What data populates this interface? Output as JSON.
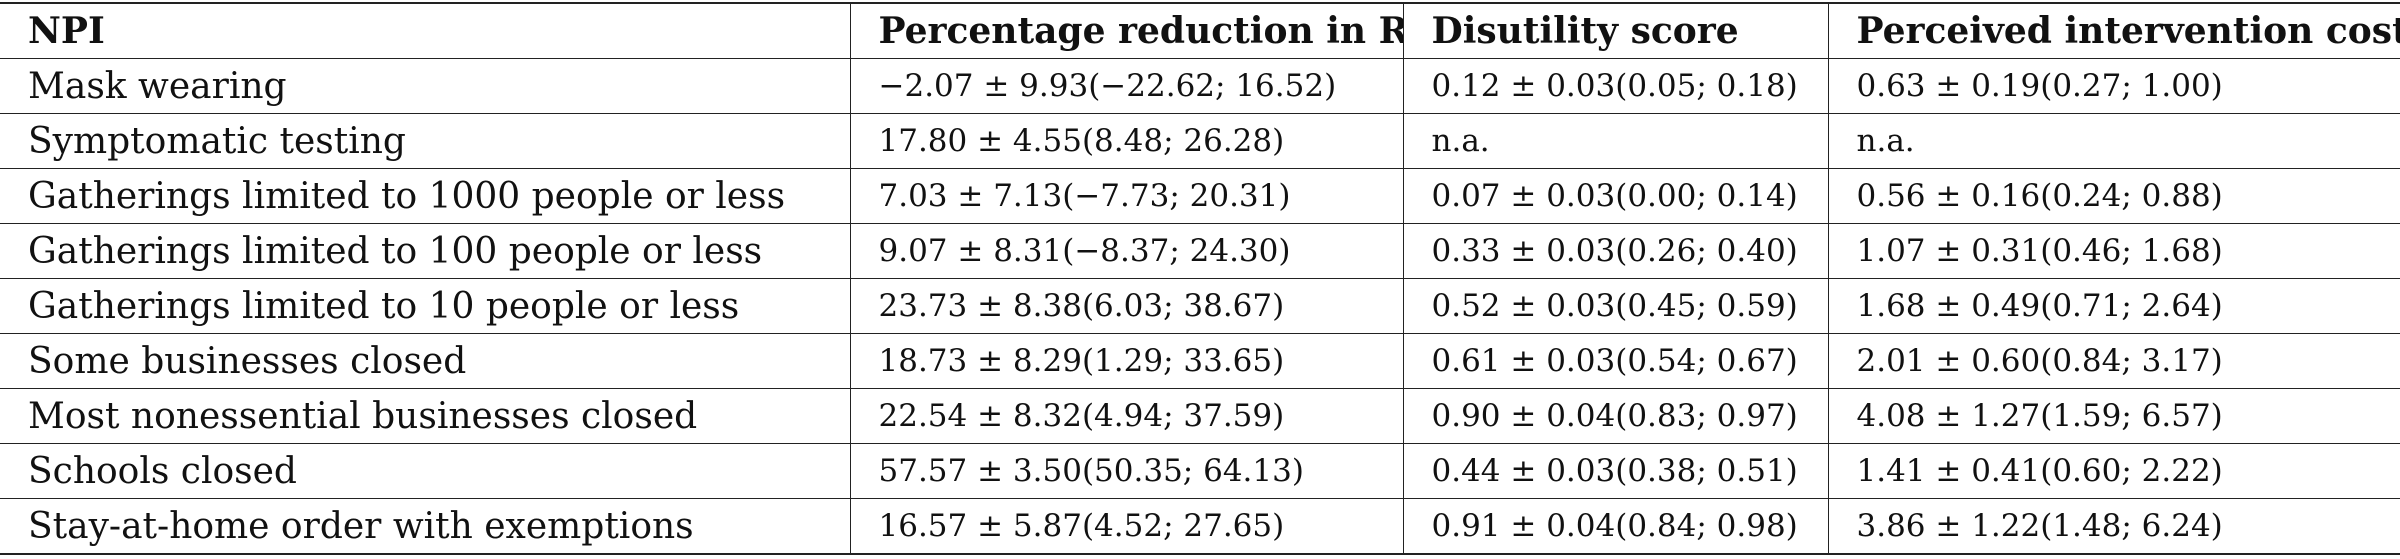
{
  "table": {
    "headers": [
      "NPI",
      "Percentage reduction in R",
      "Disutility score",
      "Perceived intervention cost"
    ],
    "rows": [
      [
        "Mask wearing",
        "−2.07 ± 9.93(−22.62; 16.52)",
        "0.12 ± 0.03(0.05; 0.18)",
        "0.63 ± 0.19(0.27; 1.00)"
      ],
      [
        "Symptomatic testing",
        "17.80 ± 4.55(8.48; 26.28)",
        "n.a.",
        "n.a."
      ],
      [
        "Gatherings limited to 1000 people or less",
        "7.03 ± 7.13(−7.73; 20.31)",
        "0.07 ± 0.03(0.00; 0.14)",
        "0.56 ± 0.16(0.24; 0.88)"
      ],
      [
        "Gatherings limited to 100 people or less",
        "9.07 ± 8.31(−8.37; 24.30)",
        "0.33 ± 0.03(0.26; 0.40)",
        "1.07 ± 0.31(0.46; 1.68)"
      ],
      [
        "Gatherings limited to 10 people or less",
        "23.73 ± 8.38(6.03; 38.67)",
        "0.52 ± 0.03(0.45; 0.59)",
        "1.68 ± 0.49(0.71; 2.64)"
      ],
      [
        "Some businesses closed",
        "18.73 ± 8.29(1.29; 33.65)",
        "0.61 ± 0.03(0.54; 0.67)",
        "2.01 ± 0.60(0.84; 3.17)"
      ],
      [
        "Most nonessential businesses closed",
        "22.54 ± 8.32(4.94; 37.59)",
        "0.90 ± 0.04(0.83; 0.97)",
        "4.08 ± 1.27(1.59; 6.57)"
      ],
      [
        "Schools closed",
        "57.57 ± 3.50(50.35; 64.13)",
        "0.44 ± 0.03(0.38; 0.51)",
        "1.41 ± 0.41(0.60; 2.22)"
      ],
      [
        "Stay-at-home order with exemptions",
        "16.57 ± 5.87(4.52; 27.65)",
        "0.91 ± 0.04(0.84; 0.98)",
        "3.86 ± 1.22(1.48; 6.24)"
      ]
    ]
  }
}
